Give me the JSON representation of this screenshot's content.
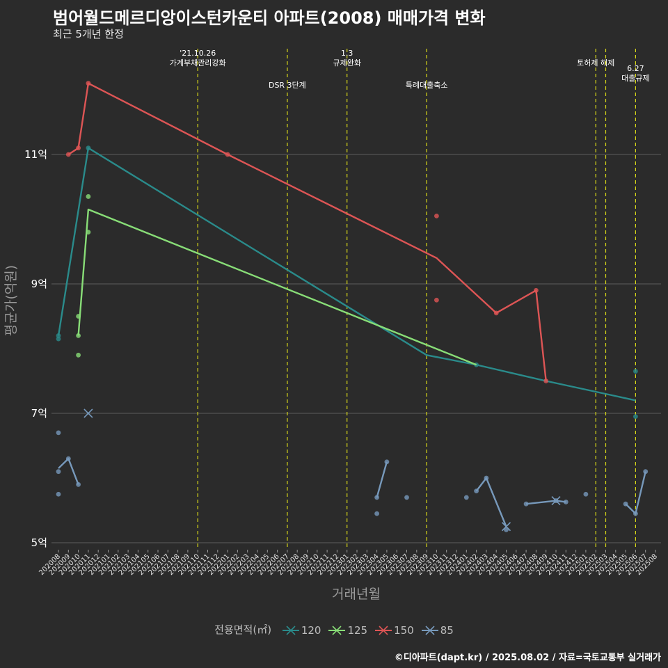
{
  "chart_data": {
    "type": "line",
    "title": "범어월드메르디앙이스턴카운티 아파트(2008) 매매가격 변화",
    "subtitle": "최근 5개년 한정",
    "xlabel": "거래년월",
    "ylabel": "평균가(억원)",
    "caption": "©디아파트(dapt.kr) / 2025.08.02 / 자료=국토교통부 실거래가",
    "legend_title": "전용면적(㎡)",
    "legend_position": "bottom",
    "ylim": [
      4.85,
      12.9
    ],
    "yticks": [
      5,
      7,
      9,
      11
    ],
    "ytick_labels": [
      "5억",
      "7억",
      "9억",
      "11억"
    ],
    "x_months": [
      "202008",
      "202009",
      "202010",
      "202011",
      "202012",
      "202101",
      "202102",
      "202103",
      "202104",
      "202105",
      "202106",
      "202107",
      "202108",
      "202109",
      "202110",
      "202111",
      "202112",
      "202201",
      "202202",
      "202203",
      "202204",
      "202205",
      "202206",
      "202207",
      "202208",
      "202209",
      "202210",
      "202211",
      "202212",
      "202301",
      "202302",
      "202303",
      "202304",
      "202305",
      "202306",
      "202307",
      "202308",
      "202309",
      "202310",
      "202311",
      "202312",
      "202401",
      "202402",
      "202403",
      "202404",
      "202405",
      "202406",
      "202407",
      "202408",
      "202409",
      "202410",
      "202411",
      "202412",
      "202501",
      "202502",
      "202503",
      "202504",
      "202505",
      "202506",
      "202507",
      "202508"
    ],
    "events": [
      {
        "month": "202110",
        "label": "'21.10.26\n가계부채관리강화",
        "row": 0
      },
      {
        "month": "202207",
        "label": "DSR 3단계",
        "row": 1
      },
      {
        "month": "202301",
        "label": "1.3\n규제완화",
        "row": 0
      },
      {
        "month": "202309",
        "label": "특례대출축소",
        "row": 1
      },
      {
        "month": "202502",
        "label": "토허제 해제",
        "row": 0
      },
      {
        "month": "202503",
        "label": "",
        "row": 0
      },
      {
        "month": "202506",
        "label": "6.27\n대출규제",
        "row": 2
      }
    ],
    "series": [
      {
        "name": "120",
        "color": "#2a8b8b",
        "line": [
          [
            "202008",
            8.2
          ],
          [
            "202011",
            11.1
          ],
          [
            "202309",
            7.9
          ],
          [
            "202402",
            7.75
          ],
          [
            "202409",
            7.5
          ],
          [
            "202506",
            7.2
          ]
        ],
        "points": [
          [
            "202008",
            8.2
          ],
          [
            "202008",
            8.15
          ],
          [
            "202011",
            11.1
          ],
          [
            "202402",
            7.75
          ],
          [
            "202506",
            7.65
          ],
          [
            "202506",
            6.95
          ]
        ],
        "cross": []
      },
      {
        "name": "125",
        "color": "#88dd77",
        "line": [
          [
            "202010",
            8.2
          ],
          [
            "202011",
            10.15
          ],
          [
            "202402",
            7.75
          ]
        ],
        "points": [
          [
            "202010",
            8.5
          ],
          [
            "202010",
            8.2
          ],
          [
            "202010",
            7.9
          ],
          [
            "202011",
            10.35
          ],
          [
            "202011",
            9.8
          ]
        ],
        "cross": []
      },
      {
        "name": "150",
        "color": "#dd5555",
        "line": [
          [
            "202009",
            11.0
          ],
          [
            "202010",
            11.1
          ],
          [
            "202011",
            12.1
          ],
          [
            "202201",
            11.0
          ],
          [
            "202310",
            9.4
          ],
          [
            "202404",
            8.55
          ],
          [
            "202408",
            8.9
          ],
          [
            "202409",
            7.5
          ]
        ],
        "points": [
          [
            "202009",
            11.0
          ],
          [
            "202010",
            11.1
          ],
          [
            "202011",
            12.1
          ],
          [
            "202201",
            11.0
          ],
          [
            "202310",
            10.05
          ],
          [
            "202310",
            8.75
          ],
          [
            "202404",
            8.55
          ],
          [
            "202408",
            8.9
          ],
          [
            "202409",
            7.5
          ]
        ],
        "cross": []
      },
      {
        "name": "85",
        "color": "#7799bb",
        "segments": [
          [
            [
              "202008",
              6.15
            ],
            [
              "202009",
              6.3
            ],
            [
              "202010",
              5.9
            ]
          ],
          [
            [
              "202304",
              5.7
            ],
            [
              "202305",
              6.25
            ]
          ],
          [
            [
              "202402",
              5.8
            ],
            [
              "202403",
              6.0
            ],
            [
              "202405",
              5.25
            ]
          ],
          [
            [
              "202407",
              5.6
            ],
            [
              "202410",
              5.65
            ],
            [
              "202411",
              5.63
            ]
          ],
          [
            [
              "202505",
              5.6
            ],
            [
              "202506",
              5.45
            ],
            [
              "202507",
              6.1
            ]
          ]
        ],
        "points": [
          [
            "202008",
            6.7
          ],
          [
            "202008",
            6.1
          ],
          [
            "202008",
            5.75
          ],
          [
            "202009",
            6.3
          ],
          [
            "202010",
            5.9
          ],
          [
            "202304",
            5.7
          ],
          [
            "202304",
            5.45
          ],
          [
            "202305",
            6.25
          ],
          [
            "202307",
            5.7
          ],
          [
            "202401",
            5.7
          ],
          [
            "202402",
            5.8
          ],
          [
            "202403",
            6.0
          ],
          [
            "202405",
            5.2
          ],
          [
            "202407",
            5.6
          ],
          [
            "202410",
            5.65
          ],
          [
            "202411",
            5.63
          ],
          [
            "202501",
            5.75
          ],
          [
            "202505",
            5.6
          ],
          [
            "202506",
            5.45
          ],
          [
            "202507",
            6.1
          ]
        ],
        "cross": [
          [
            "202011",
            7.0
          ],
          [
            "202405",
            5.25
          ],
          [
            "202410",
            5.65
          ]
        ]
      }
    ]
  }
}
